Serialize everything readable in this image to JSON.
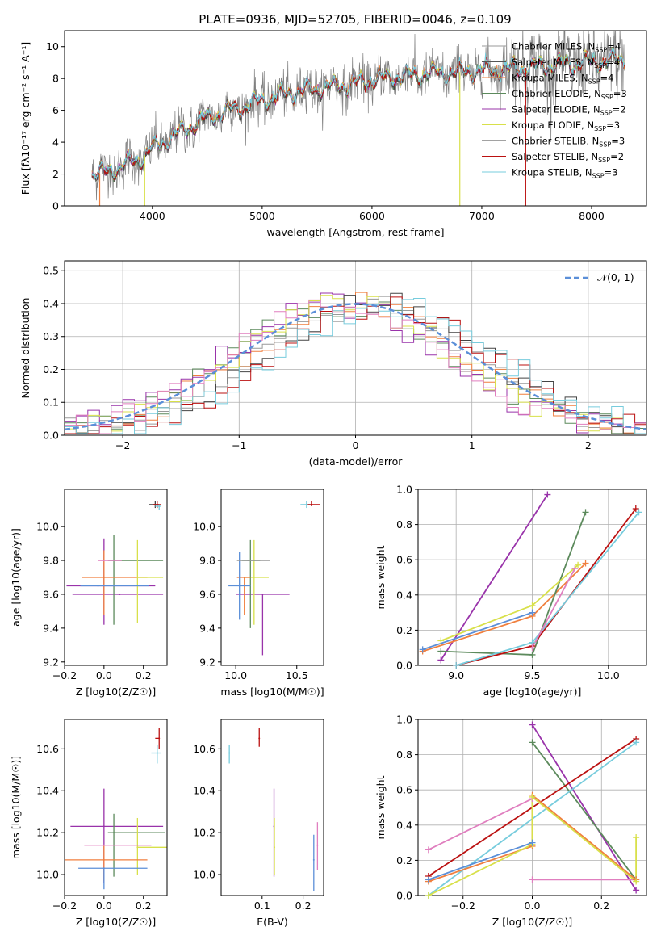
{
  "page": {
    "title": "PLATE=0936, MJD=52705, FIBERID=0046, z=0.109"
  },
  "palette": {
    "chabrier_miles": "#999999",
    "salpeter_miles": "#555555",
    "kroupa_miles": "#f07f3e",
    "chabrier_elodie": "#5c8a5c",
    "salpeter_elodie": "#9933aa",
    "kroupa_elodie": "#d8e04a",
    "chabrier_stelib": "#444444",
    "salpeter_stelib": "#bb1111",
    "kroupa_stelib": "#77ccdd",
    "normal_curve": "#5b8fd8",
    "pink": "#e07fbf",
    "blue": "#5b8fd8",
    "data_gray": "#808080"
  },
  "chart_data": [
    {
      "id": "spectrum",
      "type": "line",
      "xlabel": "wavelength [Angstrom, rest frame]",
      "ylabel": "Flux [fλ10⁻¹⁷ erg cm⁻² s⁻¹ A⁻¹]",
      "xlim": [
        3200,
        8500
      ],
      "ylim": [
        0,
        11
      ],
      "xticks": [
        4000,
        5000,
        6000,
        7000,
        8000
      ],
      "yticks": [
        0,
        2,
        4,
        6,
        8,
        10
      ],
      "continuum_x": [
        3500,
        3700,
        3900,
        4000,
        4200,
        4400,
        4600,
        4800,
        5000,
        5200,
        5500,
        5800,
        6000,
        6200,
        6500,
        6800,
        7000,
        7300,
        7600,
        7900,
        8200,
        8300
      ],
      "continuum_y": [
        2.0,
        2.4,
        3.0,
        3.6,
        4.4,
        5.2,
        5.8,
        6.2,
        6.6,
        7.0,
        7.4,
        7.6,
        7.9,
        8.1,
        8.3,
        8.4,
        8.5,
        8.6,
        8.8,
        9.0,
        9.1,
        9.2
      ],
      "legend": [
        "Chabrier MILES, N_SSP=4",
        "Salpeter MILES, N_SSP=4",
        "Kroupa MILES, N_SSP=4",
        "Chabrier ELODIE, N_SSP=3",
        "Salpeter ELODIE, N_SSP=2",
        "Kroupa ELODIE, N_SSP=3",
        "Chabrier STELIB, N_SSP=3",
        "Salpeter STELIB, N_SSP=2",
        "Kroupa STELIB, N_SSP=3"
      ]
    },
    {
      "id": "residuals",
      "type": "line",
      "xlabel": "(data-model)/error",
      "ylabel": "Normed distribution",
      "xlim": [
        -2.5,
        2.5
      ],
      "ylim": [
        0,
        0.53
      ],
      "xticks": [
        -2,
        -1,
        0,
        1,
        2
      ],
      "yticks": [
        0.0,
        0.1,
        0.2,
        0.3,
        0.4,
        0.5
      ],
      "grid": true,
      "legend": "N(0,1)",
      "bin_width": 0.1
    },
    {
      "id": "z_age",
      "type": "scatter",
      "xlabel": "Z [log10(Z/Z☉)]",
      "ylabel": "age  [log10(age/yr)]",
      "xlim": [
        -0.2,
        0.32
      ],
      "ylim": [
        9.18,
        10.22
      ],
      "xticks": [
        -0.2,
        0.0,
        0.2
      ],
      "yticks": [
        9.2,
        9.4,
        9.6,
        9.8,
        10.0
      ],
      "points": [
        {
          "x": 0.0,
          "y": 9.65,
          "xerr": [
            0.19,
            0.26
          ],
          "yerr": [
            0.23,
            0.28
          ],
          "series": "salpeter_elodie"
        },
        {
          "x": 0.08,
          "y": 9.6,
          "xerr": [
            0.24,
            0.22
          ],
          "yerr": [
            0.0,
            0.0
          ],
          "series": "salpeter_elodie"
        },
        {
          "x": 0.05,
          "y": 9.8,
          "xerr": [
            0.03,
            0.25
          ],
          "yerr": [
            0.38,
            0.15
          ],
          "series": "chabrier_elodie"
        },
        {
          "x": 0.0,
          "y": 9.7,
          "xerr": [
            0.11,
            0.22
          ],
          "yerr": [
            0.22,
            0.16
          ],
          "series": "kroupa_miles"
        },
        {
          "x": 0.17,
          "y": 9.7,
          "xerr": [
            0.0,
            0.13
          ],
          "yerr": [
            0.27,
            0.22
          ],
          "series": "kroupa_elodie"
        },
        {
          "x": -0.03,
          "y": 9.65,
          "xerr": [
            0.09,
            0.26
          ],
          "yerr": [
            0.0,
            0.0
          ],
          "series": "blue"
        },
        {
          "x": 0.0,
          "y": 9.8,
          "xerr": [
            0.03,
            0.09
          ],
          "yerr": [
            0.0,
            0.0
          ],
          "series": "pink"
        },
        {
          "x": 0.26,
          "y": 10.13,
          "xerr": [
            0.03,
            0.02
          ],
          "yerr": [
            0.02,
            0.02
          ],
          "series": "chabrier_stelib"
        },
        {
          "x": 0.27,
          "y": 10.13,
          "xerr": [
            0.02,
            0.02
          ],
          "yerr": [
            0.02,
            0.02
          ],
          "series": "salpeter_stelib"
        },
        {
          "x": 0.28,
          "y": 10.12,
          "xerr": [
            0.02,
            0.01
          ],
          "yerr": [
            0.02,
            0.01
          ],
          "series": "kroupa_stelib"
        }
      ]
    },
    {
      "id": "mass_age",
      "type": "scatter",
      "xlabel": "mass [log10(M/M☉)]",
      "ylabel": "",
      "xlim": [
        9.88,
        10.72
      ],
      "ylim": [
        9.18,
        10.22
      ],
      "xticks": [
        10.0,
        10.5
      ],
      "yticks": [
        9.2,
        9.4,
        9.6,
        9.8,
        10.0
      ],
      "points": [
        {
          "x": 10.22,
          "y": 9.6,
          "xerr": [
            0.22,
            0.22
          ],
          "yerr": [
            0.36,
            0.0
          ],
          "series": "salpeter_elodie"
        },
        {
          "x": 10.15,
          "y": 9.7,
          "xerr": [
            0.08,
            0.12
          ],
          "yerr": [
            0.28,
            0.22
          ],
          "series": "kroupa_elodie"
        },
        {
          "x": 10.12,
          "y": 9.8,
          "xerr": [
            0.07,
            0.08
          ],
          "yerr": [
            0.4,
            0.12
          ],
          "series": "chabrier_elodie"
        },
        {
          "x": 10.07,
          "y": 9.7,
          "xerr": [
            0.06,
            0.05
          ],
          "yerr": [
            0.22,
            0.0
          ],
          "series": "kroupa_miles"
        },
        {
          "x": 10.03,
          "y": 9.65,
          "xerr": [
            0.09,
            0.09
          ],
          "yerr": [
            0.2,
            0.2
          ],
          "series": "blue"
        },
        {
          "x": 10.1,
          "y": 9.8,
          "xerr": [
            0.09,
            0.18
          ],
          "yerr": [
            0.0,
            0.0
          ],
          "series": "chabrier_miles"
        },
        {
          "x": 10.58,
          "y": 10.13,
          "xerr": [
            0.05,
            0.03
          ],
          "yerr": [
            0.02,
            0.02
          ],
          "series": "kroupa_stelib"
        },
        {
          "x": 10.62,
          "y": 10.13,
          "xerr": [
            0.03,
            0.07
          ],
          "yerr": [
            0.01,
            0.02
          ],
          "series": "salpeter_stelib"
        }
      ]
    },
    {
      "id": "age_weight",
      "type": "line",
      "xlabel": "age  [log10(age/yr)]",
      "ylabel": "mass weight",
      "xlim": [
        8.75,
        10.25
      ],
      "ylim": [
        0,
        1
      ],
      "xticks": [
        9.0,
        9.5,
        10.0
      ],
      "yticks": [
        0.0,
        0.2,
        0.4,
        0.6,
        0.8,
        1.0
      ],
      "grid": true,
      "series": [
        {
          "x": [
            8.9,
            9.6
          ],
          "y": [
            0.03,
            0.97
          ],
          "color": "salpeter_elodie"
        },
        {
          "x": [
            8.78,
            9.5,
            9.85
          ],
          "y": [
            0.08,
            0.28,
            0.58
          ],
          "color": "kroupa_miles"
        },
        {
          "x": [
            8.78,
            9.5
          ],
          "y": [
            0.09,
            0.3
          ],
          "color": "blue"
        },
        {
          "x": [
            8.9,
            9.5,
            9.85
          ],
          "y": [
            0.08,
            0.06,
            0.87
          ],
          "color": "chabrier_elodie"
        },
        {
          "x": [
            8.9,
            9.5,
            9.8
          ],
          "y": [
            0.14,
            0.34,
            0.57
          ],
          "color": "kroupa_elodie"
        },
        {
          "x": [
            9.0,
            9.5,
            10.18
          ],
          "y": [
            0.0,
            0.11,
            0.89
          ],
          "color": "salpeter_stelib"
        },
        {
          "x": [
            9.0,
            9.5,
            10.2
          ],
          "y": [
            0.0,
            0.13,
            0.87
          ],
          "color": "kroupa_stelib"
        },
        {
          "x": [
            9.5,
            9.78
          ],
          "y": [
            0.1,
            0.55
          ],
          "color": "pink"
        }
      ]
    },
    {
      "id": "z_mass",
      "type": "scatter",
      "xlabel": "Z [log10(Z/Z☉)]",
      "ylabel": "mass [log10(M/M☉)]",
      "xlim": [
        -0.2,
        0.32
      ],
      "ylim": [
        9.9,
        10.74
      ],
      "xticks": [
        -0.2,
        0.0,
        0.2
      ],
      "yticks": [
        10.0,
        10.2,
        10.4,
        10.6
      ],
      "points": [
        {
          "x": 0.0,
          "y": 10.23,
          "xerr": [
            0.17,
            0.3
          ],
          "yerr": [
            0.27,
            0.18
          ],
          "series": "salpeter_elodie"
        },
        {
          "x": 0.05,
          "y": 10.2,
          "xerr": [
            0.03,
            0.26
          ],
          "yerr": [
            0.21,
            0.09
          ],
          "series": "chabrier_elodie"
        },
        {
          "x": 0.17,
          "y": 10.13,
          "xerr": [
            0.0,
            0.15
          ],
          "yerr": [
            0.13,
            0.14
          ],
          "series": "kroupa_elodie"
        },
        {
          "x": 0.0,
          "y": 10.07,
          "xerr": [
            0.22,
            0.22
          ],
          "yerr": [
            0.1,
            0.07
          ],
          "series": "kroupa_miles"
        },
        {
          "x": 0.0,
          "y": 10.03,
          "xerr": [
            0.13,
            0.22
          ],
          "yerr": [
            0.1,
            0.0
          ],
          "series": "blue"
        },
        {
          "x": 0.0,
          "y": 10.14,
          "xerr": [
            0.1,
            0.24
          ],
          "yerr": [
            0.0,
            0.0
          ],
          "series": "pink"
        },
        {
          "x": 0.27,
          "y": 10.58,
          "xerr": [
            0.03,
            0.02
          ],
          "yerr": [
            0.05,
            0.04
          ],
          "series": "kroupa_stelib"
        },
        {
          "x": 0.28,
          "y": 10.65,
          "xerr": [
            0.02,
            0.0
          ],
          "yerr": [
            0.05,
            0.05
          ],
          "series": "salpeter_stelib"
        }
      ]
    },
    {
      "id": "ebv_mass",
      "type": "scatter",
      "xlabel": "E(B-V)",
      "ylabel": "",
      "xlim": [
        0.0,
        0.25
      ],
      "ylim": [
        9.9,
        10.74
      ],
      "xticks": [
        0.1,
        0.2
      ],
      "yticks": [
        10.0,
        10.2,
        10.4,
        10.6
      ],
      "points": [
        {
          "x": 0.02,
          "y": 10.58,
          "yerr": [
            0.05,
            0.04
          ],
          "series": "kroupa_stelib"
        },
        {
          "x": 0.093,
          "y": 10.65,
          "yerr": [
            0.04,
            0.05
          ],
          "series": "salpeter_stelib"
        },
        {
          "x": 0.129,
          "y": 10.23,
          "yerr": [
            0.24,
            0.18
          ],
          "series": "salpeter_elodie"
        },
        {
          "x": 0.13,
          "y": 10.13,
          "yerr": [
            0.13,
            0.14
          ],
          "series": "kroupa_elodie"
        },
        {
          "x": 0.226,
          "y": 10.07,
          "yerr": [
            0.15,
            0.12
          ],
          "series": "blue"
        },
        {
          "x": 0.235,
          "y": 10.14,
          "yerr": [
            0.12,
            0.11
          ],
          "series": "pink"
        }
      ]
    },
    {
      "id": "z_weight",
      "type": "line",
      "xlabel": "Z [log10(Z/Z☉)]",
      "ylabel": "mass weight",
      "xlim": [
        -0.33,
        0.33
      ],
      "ylim": [
        0,
        1
      ],
      "xticks": [
        -0.2,
        0.0,
        0.2
      ],
      "yticks": [
        0.0,
        0.2,
        0.4,
        0.6,
        0.8,
        1.0
      ],
      "grid": true,
      "series": [
        {
          "x": [
            0.0,
            0.3
          ],
          "y": [
            0.97,
            0.03
          ],
          "color": "salpeter_elodie"
        },
        {
          "x": [
            0.0,
            0.3
          ],
          "y": [
            0.87,
            0.09
          ],
          "color": "chabrier_elodie"
        },
        {
          "x": [
            -0.3,
            0.0
          ],
          "y": [
            0.26,
            0.55
          ],
          "color": "pink"
        },
        {
          "x": [
            0.0,
            0.3
          ],
          "y": [
            0.09,
            0.09
          ],
          "color": "pink"
        },
        {
          "x": [
            -0.3,
            0.3
          ],
          "y": [
            0.11,
            0.89
          ],
          "color": "salpeter_stelib"
        },
        {
          "x": [
            -0.3,
            0.3
          ],
          "y": [
            0.0,
            0.87
          ],
          "color": "kroupa_stelib"
        },
        {
          "x": [
            -0.3,
            0.0,
            0.0,
            0.3
          ],
          "y": [
            0.08,
            0.28,
            0.57,
            0.09
          ],
          "color": "kroupa_miles"
        },
        {
          "x": [
            -0.3,
            0.0,
            0.0,
            0.3,
            0.3
          ],
          "y": [
            0.0,
            0.29,
            0.56,
            0.08,
            0.33
          ],
          "color": "kroupa_elodie"
        },
        {
          "x": [
            -0.3,
            0.0
          ],
          "y": [
            0.09,
            0.3
          ],
          "color": "blue"
        }
      ]
    }
  ]
}
